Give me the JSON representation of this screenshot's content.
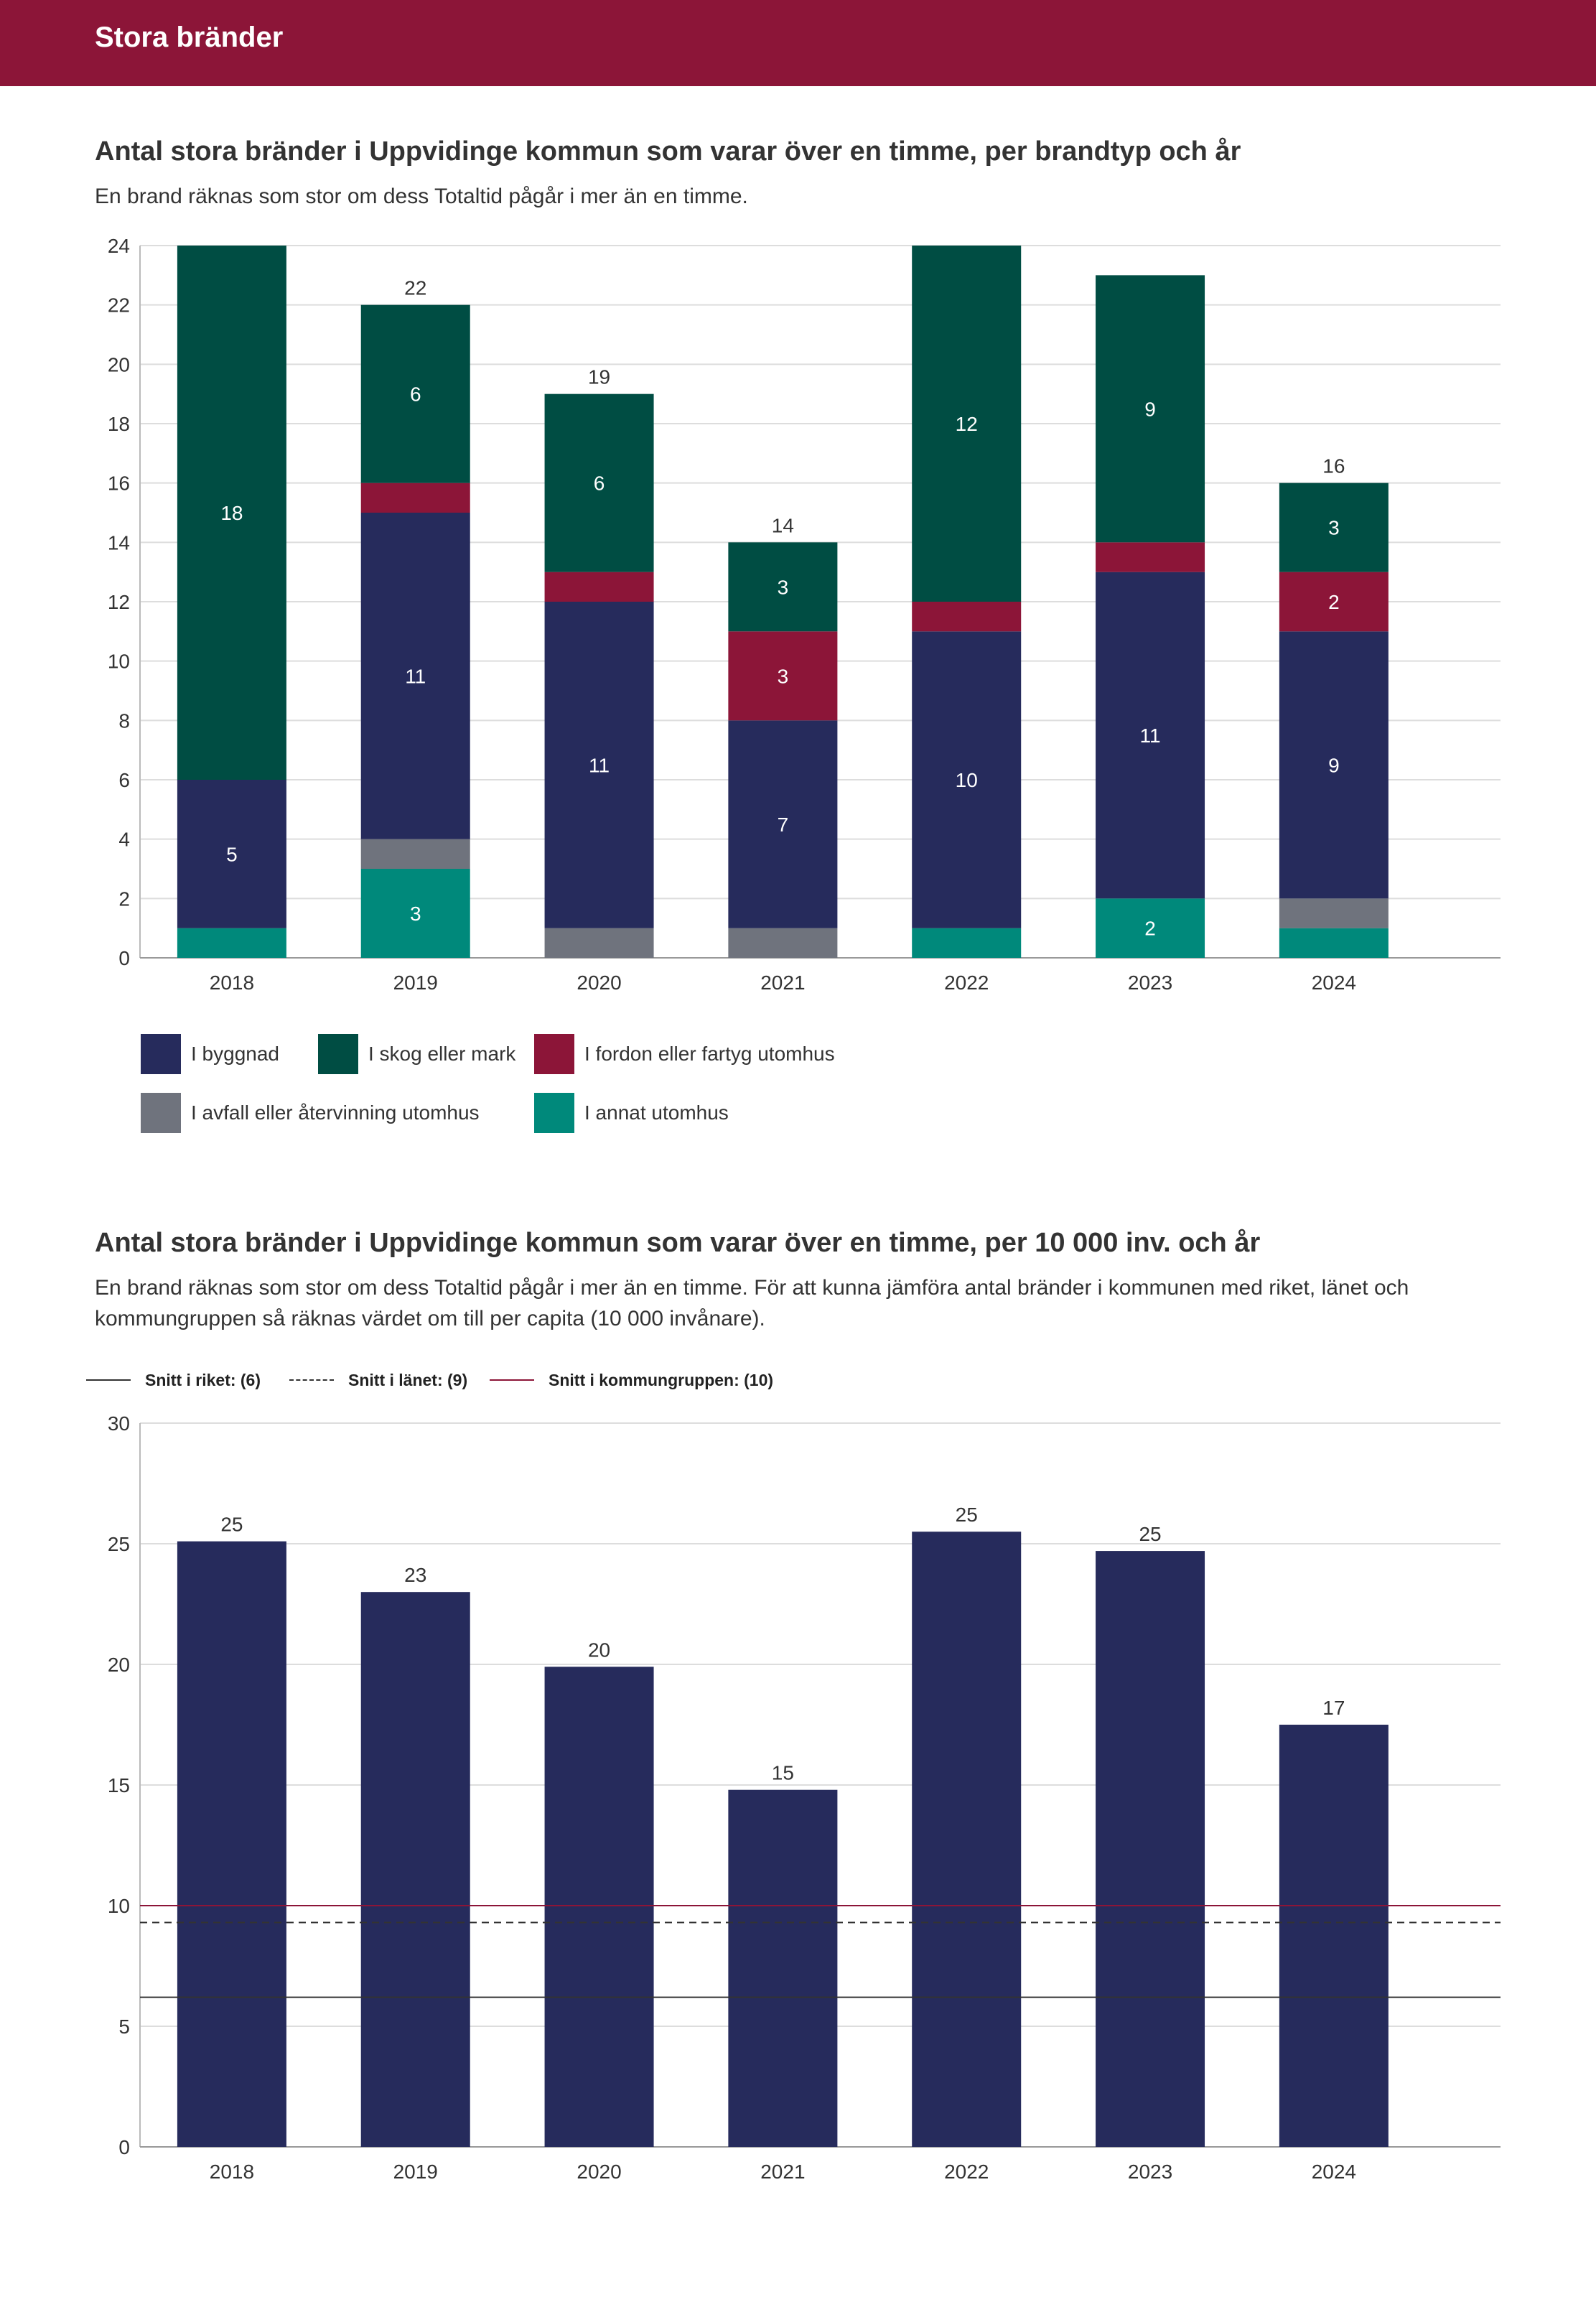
{
  "header": {
    "title": "Stora bränder"
  },
  "colors": {
    "header_bg": "#8c1538",
    "byggnad": "#262b5c",
    "skog": "#004d43",
    "fordon": "#8c1538",
    "avfall": "#6f737d",
    "annat": "#00897b",
    "bar2": "#262b5c",
    "line_riket": "#333333",
    "line_lanet": "#333333",
    "line_kommungrupp": "#8c1538"
  },
  "chart1": {
    "title": "Antal stora bränder i Uppvidinge kommun som varar över en timme, per brandtyp och år",
    "subtitle": "En brand räknas som stor om dess Totaltid pågår i mer än en timme."
  },
  "chart2": {
    "title": "Antal stora bränder i Uppvidinge kommun som varar över en timme, per 10 000 inv. och år",
    "subtitle": "En brand räknas som stor om dess Totaltid pågår i mer än en timme. För att kunna jämföra antal bränder i kommunen med riket, länet och kommungruppen så räknas värdet om till per capita (10 000 invånare)."
  },
  "chart_data": [
    {
      "type": "bar",
      "stacked": true,
      "title": "Antal stora bränder i Uppvidinge kommun som varar över en timme, per brandtyp och år",
      "categories": [
        "2018",
        "2019",
        "2020",
        "2021",
        "2022",
        "2023",
        "2024"
      ],
      "ylim": [
        0,
        24
      ],
      "yticks": [
        "0",
        "2",
        "4",
        "6",
        "8",
        "10",
        "12",
        "14",
        "16",
        "18",
        "20",
        "22",
        "24"
      ],
      "grid": true,
      "legend_position": "bottom",
      "totals": [
        null,
        22,
        19,
        14,
        null,
        23,
        16
      ],
      "total_labels": [
        "",
        "22",
        "19",
        "14",
        "",
        "",
        "16"
      ],
      "series": [
        {
          "name": "I annat utomhus",
          "key": "annat",
          "values": [
            1,
            3,
            0,
            0,
            1,
            2,
            1
          ],
          "labels": [
            "",
            "3",
            "",
            "",
            "",
            "2",
            ""
          ]
        },
        {
          "name": "I avfall eller återvinning utomhus",
          "key": "avfall",
          "values": [
            0,
            1,
            1,
            1,
            0,
            0,
            1
          ],
          "labels": [
            "",
            "",
            "",
            "",
            "",
            "",
            ""
          ]
        },
        {
          "name": "I byggnad",
          "key": "byggnad",
          "values": [
            5,
            11,
            11,
            7,
            10,
            11,
            9
          ],
          "labels": [
            "5",
            "11",
            "11",
            "7",
            "10",
            "11",
            "9"
          ]
        },
        {
          "name": "I fordon eller fartyg utomhus",
          "key": "fordon",
          "values": [
            0,
            1,
            1,
            3,
            1,
            1,
            2
          ],
          "labels": [
            "",
            "",
            "",
            "3",
            "",
            "",
            "2"
          ]
        },
        {
          "name": "I skog eller mark",
          "key": "skog",
          "values": [
            18,
            6,
            6,
            3,
            12,
            9,
            3
          ],
          "labels": [
            "18",
            "6",
            "6",
            "3",
            "12",
            "9",
            "3"
          ]
        }
      ],
      "legend": [
        {
          "name": "I byggnad",
          "key": "byggnad"
        },
        {
          "name": "I skog eller mark",
          "key": "skog"
        },
        {
          "name": "I fordon eller fartyg utomhus",
          "key": "fordon"
        },
        {
          "name": "I avfall eller återvinning utomhus",
          "key": "avfall"
        },
        {
          "name": "I annat utomhus",
          "key": "annat"
        }
      ]
    },
    {
      "type": "bar",
      "title": "Antal stora bränder i Uppvidinge kommun som varar över en timme, per 10 000 inv. och år",
      "categories": [
        "2018",
        "2019",
        "2020",
        "2021",
        "2022",
        "2023",
        "2024"
      ],
      "values": [
        25.1,
        23.0,
        19.9,
        14.8,
        25.5,
        24.7,
        17.5
      ],
      "value_labels": [
        "25",
        "23",
        "20",
        "15",
        "25",
        "25",
        "17"
      ],
      "ylim": [
        0,
        30
      ],
      "yticks": [
        "0",
        "5",
        "10",
        "15",
        "20",
        "25",
        "30"
      ],
      "grid": true,
      "reference_lines": [
        {
          "name": "Snitt i riket: (6)",
          "value": 6.2,
          "style": "solid",
          "color_key": "line_riket"
        },
        {
          "name": "Snitt i länet: (9)",
          "value": 9.3,
          "style": "dashed",
          "color_key": "line_lanet"
        },
        {
          "name": "Snitt i kommungruppen: (10)",
          "value": 10.0,
          "style": "solid",
          "color_key": "line_kommungrupp"
        }
      ],
      "legend_position": "top-left"
    }
  ]
}
